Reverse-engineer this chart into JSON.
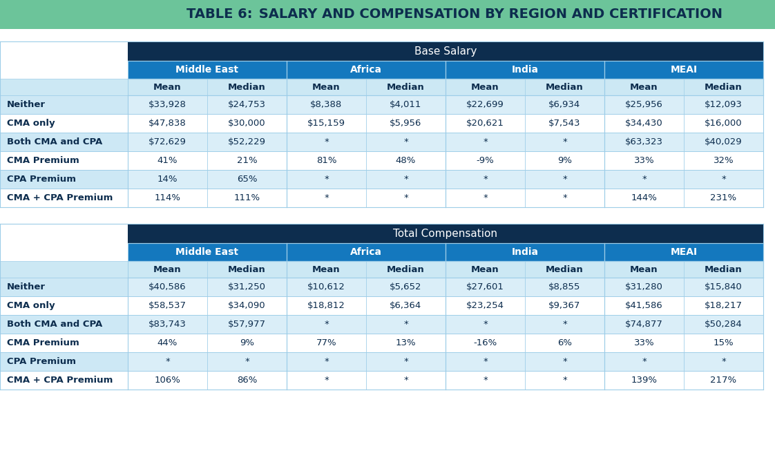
{
  "title_bold": "TABLE 6:",
  "title_rest": " SALARY AND COMPENSATION BY REGION AND CERTIFICATION",
  "title_bg": "#6cc49a",
  "title_text_color": "#0d2d4e",
  "bg_color": "#ffffff",
  "section1_header": "Base Salary",
  "section2_header": "Total Compensation",
  "region_headers": [
    "Middle East",
    "Africa",
    "India",
    "MEAI"
  ],
  "row_labels": [
    "Neither",
    "CMA only",
    "Both CMA and CPA",
    "CMA Premium",
    "CPA Premium",
    "CMA + CPA Premium"
  ],
  "base_salary": [
    [
      "$33,928",
      "$24,753",
      "$8,388",
      "$4,011",
      "$22,699",
      "$6,934",
      "$25,956",
      "$12,093"
    ],
    [
      "$47,838",
      "$30,000",
      "$15,159",
      "$5,956",
      "$20,621",
      "$7,543",
      "$34,430",
      "$16,000"
    ],
    [
      "$72,629",
      "$52,229",
      "*",
      "*",
      "*",
      "*",
      "$63,323",
      "$40,029"
    ],
    [
      "41%",
      "21%",
      "81%",
      "48%",
      "-9%",
      "9%",
      "33%",
      "32%"
    ],
    [
      "14%",
      "65%",
      "*",
      "*",
      "*",
      "*",
      "*",
      "*"
    ],
    [
      "114%",
      "111%",
      "*",
      "*",
      "*",
      "*",
      "144%",
      "231%"
    ]
  ],
  "total_comp": [
    [
      "$40,586",
      "$31,250",
      "$10,612",
      "$5,652",
      "$27,601",
      "$8,855",
      "$31,280",
      "$15,840"
    ],
    [
      "$58,537",
      "$34,090",
      "$18,812",
      "$6,364",
      "$23,254",
      "$9,367",
      "$41,586",
      "$18,217"
    ],
    [
      "$83,743",
      "$57,977",
      "*",
      "*",
      "*",
      "*",
      "$74,877",
      "$50,284"
    ],
    [
      "44%",
      "9%",
      "77%",
      "13%",
      "-16%",
      "6%",
      "33%",
      "15%"
    ],
    [
      "*",
      "*",
      "*",
      "*",
      "*",
      "*",
      "*",
      "*"
    ],
    [
      "106%",
      "86%",
      "*",
      "*",
      "*",
      "*",
      "139%",
      "217%"
    ]
  ],
  "col_dark_bg": "#0d2d4e",
  "col_mid_bg": "#1478be",
  "col_light_bg": "#cce8f4",
  "row_even_bg": "#daeef8",
  "row_odd_bg": "#ffffff",
  "white": "#ffffff",
  "label_col_bg_even": "#cde8f5",
  "label_col_bg_odd": "#ffffff",
  "text_dark": "#0d2d4e",
  "text_white": "#ffffff",
  "border_color": "#9dcde8",
  "fig_w": 11.22,
  "fig_h": 6.53,
  "dpi": 100
}
